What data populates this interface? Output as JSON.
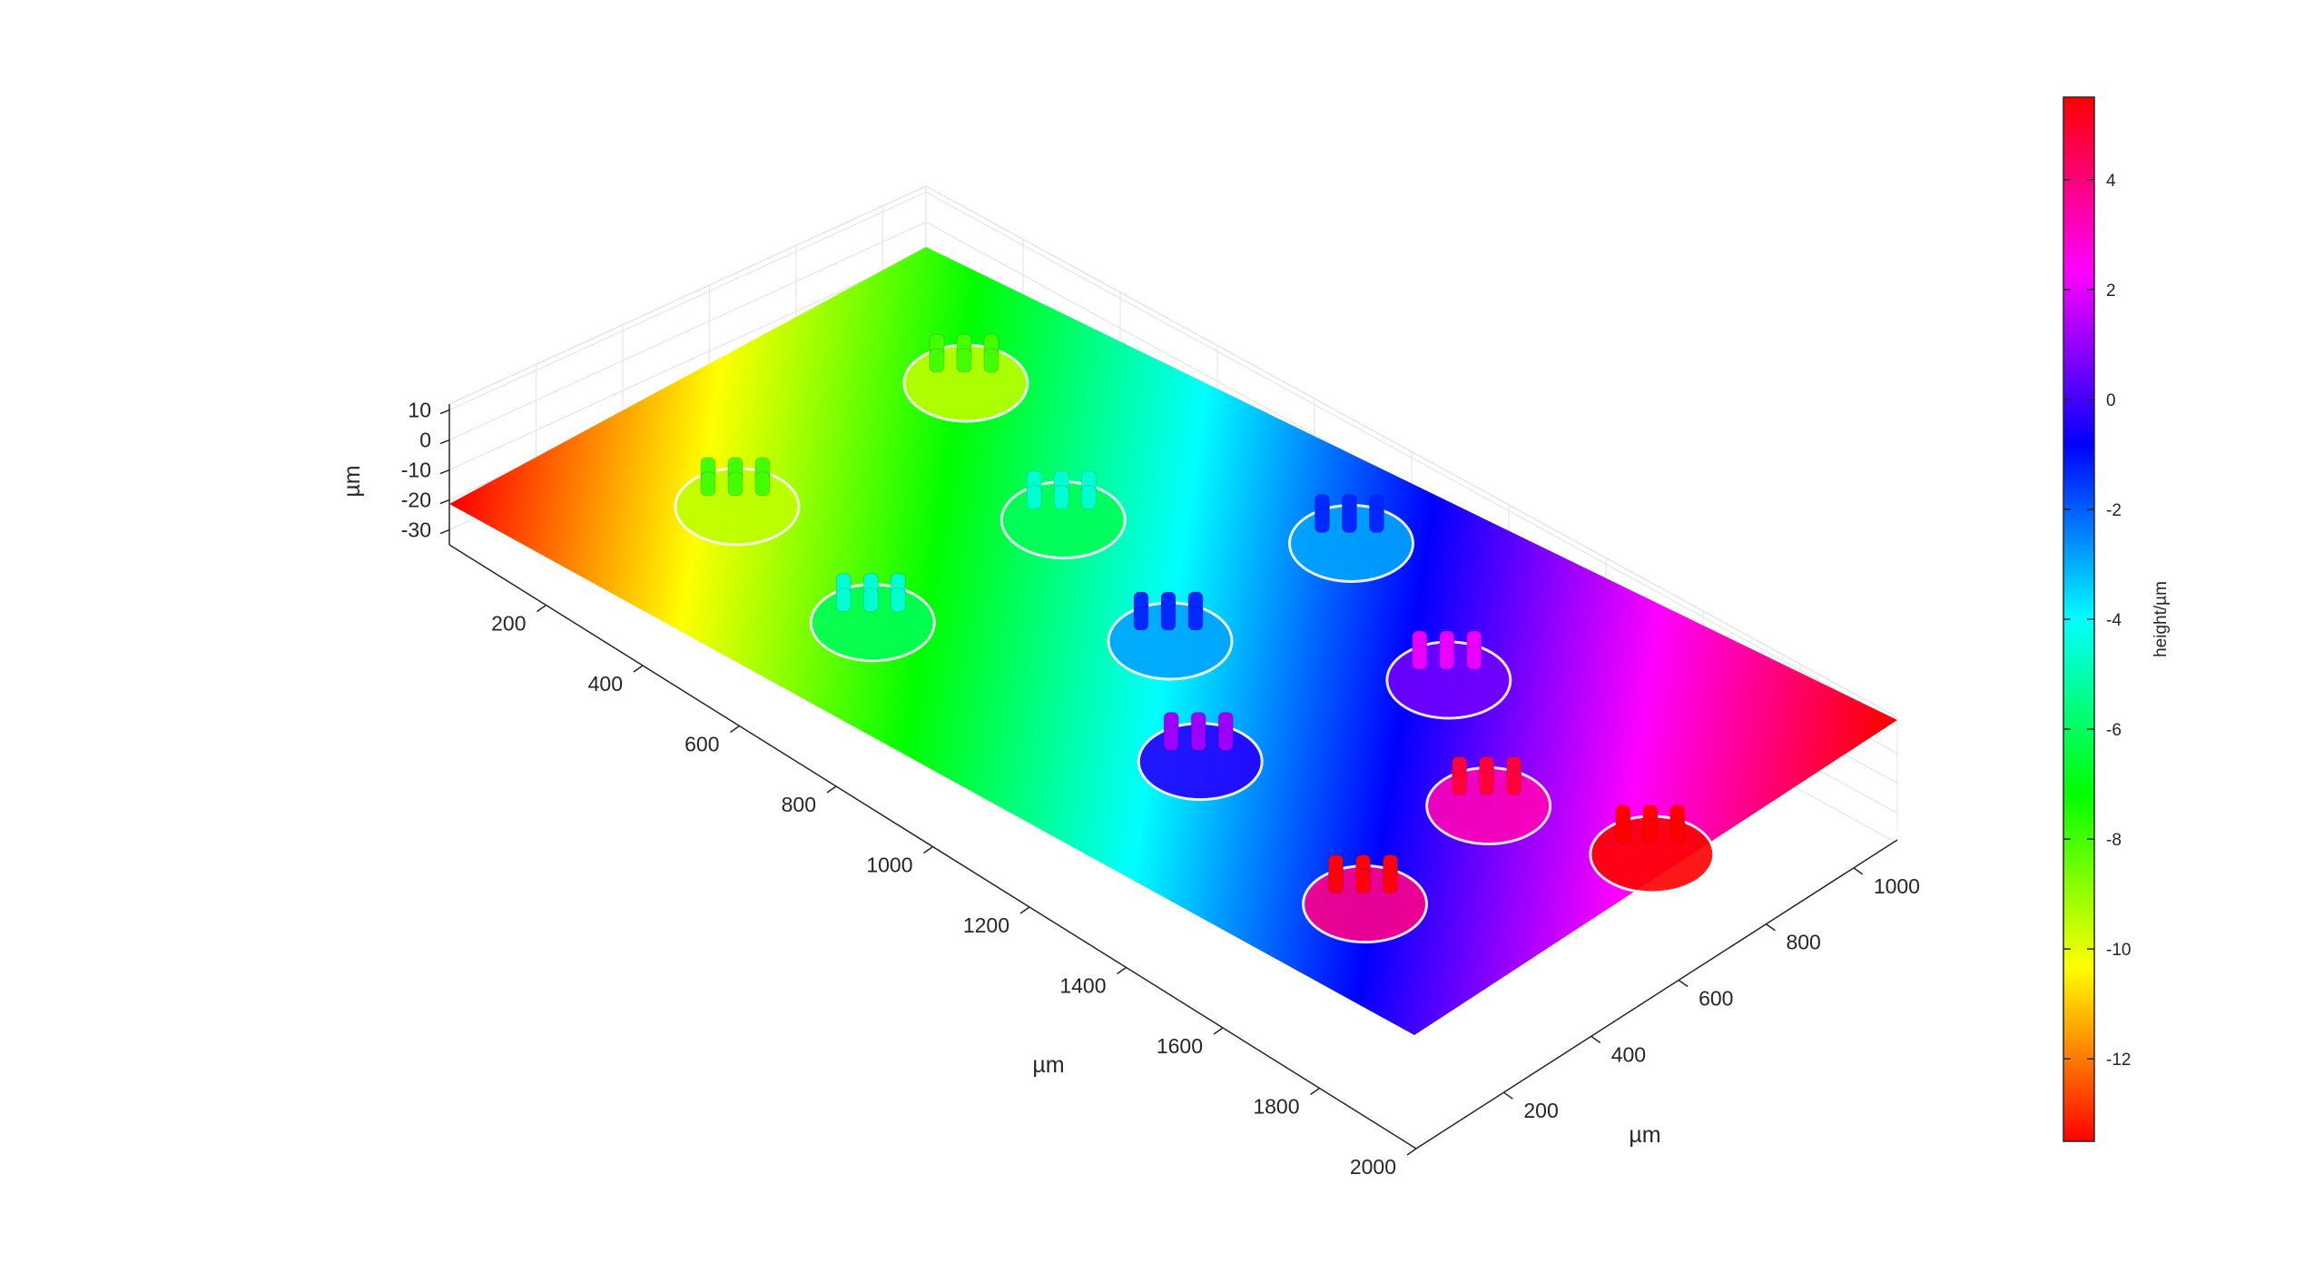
{
  "chart_data": {
    "type": "surface",
    "title": "",
    "x_axis": {
      "label": "µm",
      "ticks": [
        200,
        400,
        600,
        800,
        1000,
        1200,
        1400,
        1600,
        1800,
        2000
      ],
      "tick_labels": [
        "200",
        "400",
        "600",
        "800",
        "1000",
        "1200",
        "1400",
        "1600",
        "1800",
        "2000"
      ],
      "range": [
        0,
        2000
      ]
    },
    "y_axis": {
      "label": "µm",
      "ticks": [
        200,
        400,
        600,
        800,
        1000
      ],
      "tick_labels": [
        "200",
        "400",
        "600",
        "800",
        "1000"
      ],
      "range": [
        0,
        1100
      ]
    },
    "z_axis": {
      "label": "µm",
      "ticks": [
        10,
        0,
        -10,
        -20,
        -30
      ],
      "tick_labels": [
        "10",
        "0",
        "-10",
        "-20",
        "-30"
      ],
      "range": [
        -35,
        12
      ]
    },
    "colorbar": {
      "label": "height/µm",
      "range": [
        -13.5,
        5.5
      ],
      "ticks": [
        4,
        2,
        0,
        -2,
        -4,
        -6,
        -8,
        -10,
        -12
      ],
      "tick_labels": [
        "4",
        "2",
        "0",
        "-2",
        "-4",
        "-6",
        "-8",
        "-10",
        "-12"
      ],
      "colormap": [
        "#ff0000",
        "#ff8000",
        "#ffff00",
        "#80ff00",
        "#00ff00",
        "#00ff80",
        "#00ffff",
        "#0080ff",
        "#0000ff",
        "#8000ff",
        "#ff00ff",
        "#ff0080",
        "#ff0000"
      ]
    },
    "surface": {
      "description_height_trend": "tilted plane, height increasing from x=0 to x=2000",
      "height_min": -13.5,
      "height_max": 5.5
    },
    "grid": true,
    "box": false
  }
}
